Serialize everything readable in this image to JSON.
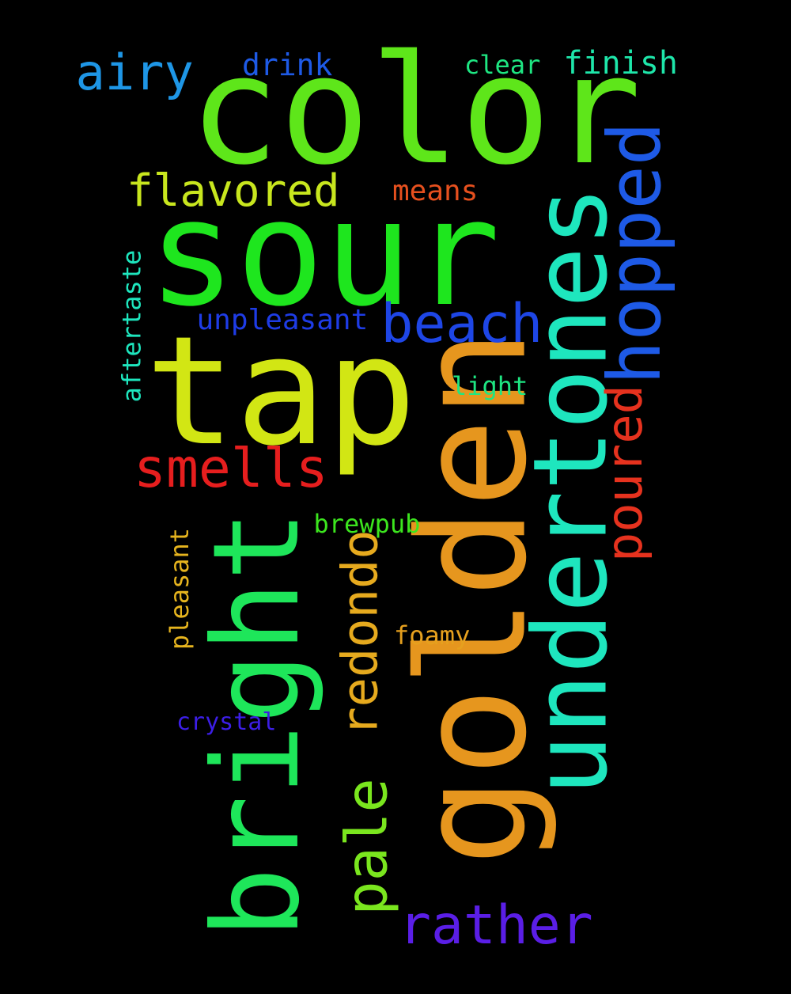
{
  "background_color": "#000000",
  "words": [
    {
      "text": "color",
      "color": "#5ee61a"
    },
    {
      "text": "sour",
      "color": "#1ee61e"
    },
    {
      "text": "tap",
      "color": "#d2e614"
    },
    {
      "text": "golden",
      "color": "#e6961e"
    },
    {
      "text": "undertones",
      "color": "#1ee6be"
    },
    {
      "text": "bright",
      "color": "#1ee65a"
    },
    {
      "text": "hopped",
      "color": "#1e5ae6"
    },
    {
      "text": "beach",
      "color": "#1e46e6"
    },
    {
      "text": "smells",
      "color": "#e61e1e"
    },
    {
      "text": "pale",
      "color": "#7ae61e"
    },
    {
      "text": "redondo",
      "color": "#e6aa1e"
    },
    {
      "text": "rather",
      "color": "#5a1ee6"
    },
    {
      "text": "poured",
      "color": "#e6321e"
    },
    {
      "text": "airy",
      "color": "#1e96e6"
    },
    {
      "text": "flavored",
      "color": "#c8e61e"
    },
    {
      "text": "finish",
      "color": "#1ee6aa"
    },
    {
      "text": "drink",
      "color": "#1e5ae6"
    },
    {
      "text": "clear",
      "color": "#1ee682"
    },
    {
      "text": "means",
      "color": "#e6501e"
    },
    {
      "text": "unpleasant",
      "color": "#1e3ce6"
    },
    {
      "text": "aftertaste",
      "color": "#1ee6be"
    },
    {
      "text": "light",
      "color": "#1ee682"
    },
    {
      "text": "brewpub",
      "color": "#3ce61e"
    },
    {
      "text": "pleasant",
      "color": "#e6b41e"
    },
    {
      "text": "foamy",
      "color": "#e6a01e"
    },
    {
      "text": "crystal",
      "color": "#3c1ee6"
    }
  ]
}
